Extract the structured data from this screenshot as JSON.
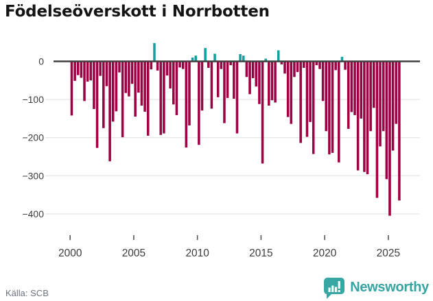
{
  "header": {
    "title": "Födelseöverskott i Norrbotten"
  },
  "footer": {
    "source": "Källa: SCB",
    "brand_name": "Newsworthy"
  },
  "colors": {
    "negative_bar": "#9e0044",
    "positive_bar": "#14a0a0",
    "grid_line": "#e8e8e8",
    "zero_line": "#3f3f3f",
    "axis_text": "#3c3c3c",
    "tick_mark": "#555555",
    "title_text": "#141414",
    "source_text": "#6e7380",
    "brand_teal": "#35a5a2"
  },
  "chart_data": {
    "type": "bar",
    "title": "Födelseöverskott i Norrbotten",
    "frequency": "quarterly",
    "start_year": 2000,
    "quarters_per_year": 4,
    "x_tick_labels": [
      "2000",
      "2005",
      "2010",
      "2015",
      "2020",
      "2025"
    ],
    "y_ticks": [
      {
        "label": "0",
        "value": 0
      },
      {
        "label": "−100",
        "value": -100
      },
      {
        "label": "−200",
        "value": -200
      },
      {
        "label": "−300",
        "value": -300
      },
      {
        "label": "−400",
        "value": -400
      }
    ],
    "ylim": [
      -430,
      55
    ],
    "grid": true,
    "legend": false,
    "values": [
      -142,
      -51,
      -36,
      -43,
      -104,
      -53,
      -50,
      -125,
      -227,
      -38,
      -175,
      -65,
      -262,
      -158,
      -131,
      -29,
      -199,
      -83,
      -92,
      -59,
      -145,
      -82,
      -116,
      -132,
      -195,
      -21,
      48,
      -24,
      -193,
      -189,
      -37,
      -71,
      -113,
      -141,
      -16,
      -20,
      -226,
      -168,
      10,
      15,
      -219,
      -129,
      35,
      -17,
      -124,
      20,
      -94,
      -20,
      -162,
      -96,
      -10,
      -98,
      -189,
      19,
      15,
      -41,
      -86,
      -44,
      -66,
      -112,
      -268,
      7,
      -116,
      -102,
      -108,
      29,
      -8,
      -32,
      -146,
      -164,
      -41,
      -28,
      -214,
      -17,
      -198,
      -159,
      -243,
      -10,
      -20,
      -104,
      -183,
      -244,
      -240,
      -23,
      -265,
      12,
      -22,
      -177,
      -133,
      -141,
      -286,
      -150,
      -290,
      -296,
      -183,
      -122,
      -358,
      -223,
      -183,
      -309,
      -405,
      -234,
      -164,
      -365
    ]
  }
}
